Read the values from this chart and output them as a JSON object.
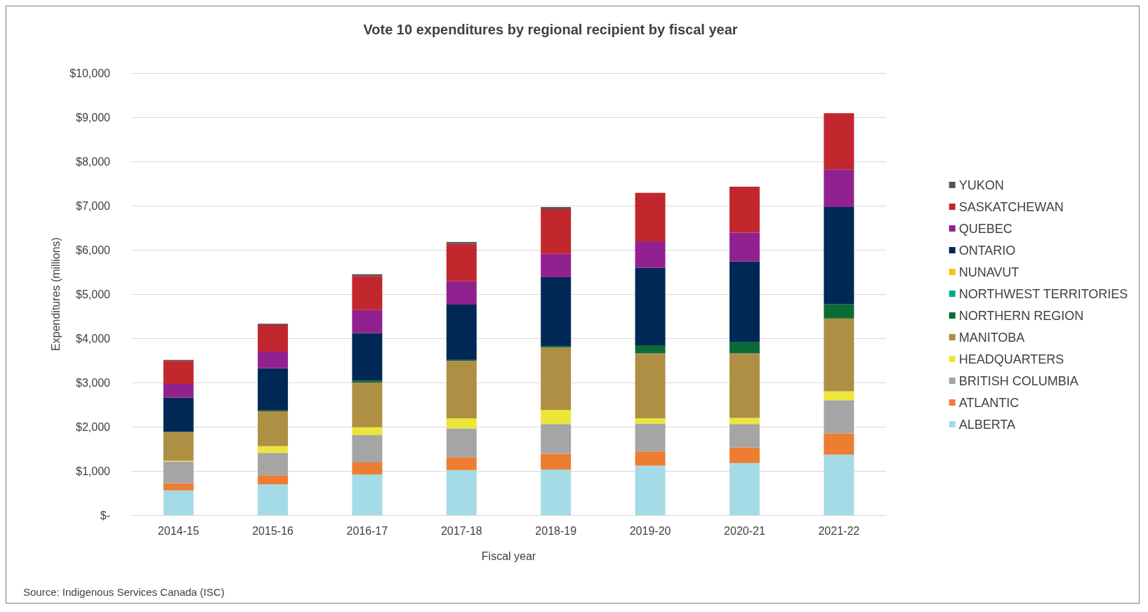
{
  "chart_data": {
    "type": "bar",
    "title": "Vote 10 expenditures by regional recipient by fiscal year",
    "xlabel": "Fiscal year",
    "ylabel": "Expenditures (millions)",
    "categories": [
      "2014-15",
      "2015-16",
      "2016-17",
      "2017-18",
      "2018-19",
      "2019-20",
      "2020-21",
      "2021-22"
    ],
    "stacked": true,
    "series": [
      {
        "name": "ALBERTA",
        "color": "#a5dbe6",
        "values": [
          560,
          700,
          920,
          1020,
          1030,
          1120,
          1180,
          1370
        ]
      },
      {
        "name": "ATLANTIC",
        "color": "#ed7d31",
        "values": [
          160,
          200,
          270,
          290,
          360,
          320,
          350,
          480
        ]
      },
      {
        "name": "BRITISH COLUMBIA",
        "color": "#a5a5a5",
        "values": [
          490,
          510,
          620,
          650,
          670,
          630,
          530,
          750
        ]
      },
      {
        "name": "HEADQUARTERS",
        "color": "#ece53a",
        "values": [
          20,
          150,
          180,
          230,
          320,
          120,
          140,
          200
        ]
      },
      {
        "name": "MANITOBA",
        "color": "#ae8f43",
        "values": [
          650,
          790,
          1010,
          1300,
          1410,
          1470,
          1460,
          1650
        ]
      },
      {
        "name": "NORTHERN REGION",
        "color": "#0a6b35",
        "values": [
          10,
          20,
          40,
          20,
          30,
          180,
          250,
          320
        ]
      },
      {
        "name": "NORTHWEST TERRITORIES",
        "color": "#00a88f",
        "values": [
          0,
          0,
          0,
          0,
          0,
          0,
          0,
          0
        ]
      },
      {
        "name": "NUNAVUT",
        "color": "#ffc000",
        "values": [
          0,
          0,
          0,
          0,
          0,
          0,
          0,
          0
        ]
      },
      {
        "name": "ONTARIO",
        "color": "#002855",
        "values": [
          770,
          950,
          1080,
          1250,
          1560,
          1750,
          1830,
          2200
        ]
      },
      {
        "name": "QUEBEC",
        "color": "#922190",
        "values": [
          310,
          380,
          520,
          530,
          530,
          600,
          650,
          850
        ]
      },
      {
        "name": "SASKATCHEWAN",
        "color": "#c1272d",
        "values": [
          520,
          600,
          770,
          840,
          1010,
          1100,
          1040,
          1270
        ]
      },
      {
        "name": "YUKON",
        "color": "#545454",
        "values": [
          20,
          30,
          40,
          50,
          50,
          0,
          0,
          0
        ]
      }
    ],
    "ylim": [
      0,
      10000
    ],
    "yticks": [
      {
        "value": 0,
        "label": "$-"
      },
      {
        "value": 1000,
        "label": "$1,000"
      },
      {
        "value": 2000,
        "label": "$2,000"
      },
      {
        "value": 3000,
        "label": "$3,000"
      },
      {
        "value": 4000,
        "label": "$4,000"
      },
      {
        "value": 5000,
        "label": "$5,000"
      },
      {
        "value": 6000,
        "label": "$6,000"
      },
      {
        "value": 7000,
        "label": "$7,000"
      },
      {
        "value": 8000,
        "label": "$8,000"
      },
      {
        "value": 9000,
        "label": "$9,000"
      },
      {
        "value": 10000,
        "label": "$10,000"
      }
    ],
    "grid": "y",
    "legend": "right",
    "annotations": [
      "Source: Indigenous Services Canada (ISC)"
    ]
  }
}
